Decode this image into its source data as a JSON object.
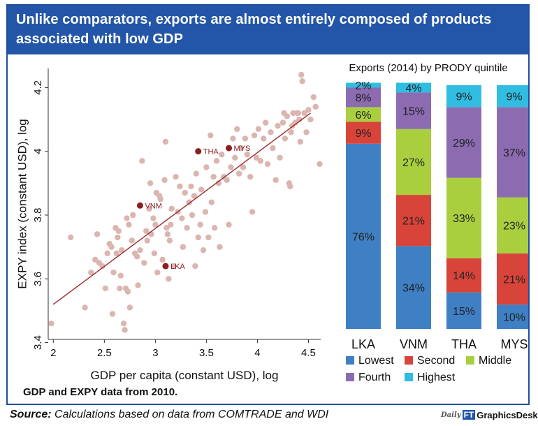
{
  "title": "Unlike comparators, exports are almost entirely composed of products associated with low GDP",
  "note": "GDP and EXPY data from 2010.",
  "source": {
    "label": "Source:",
    "text": "Calculations based on data from COMTRADE and WDI"
  },
  "logo": {
    "daily": "Daily",
    "ft": "FT",
    "text": "GraphicsDesk"
  },
  "colors": {
    "header_bg": "#2356a8",
    "scatter_point": "#dbb5b0",
    "highlight_point": "#8b1e1e",
    "fit_line": "#9b2a2a",
    "lowest": "#3f7fc4",
    "second": "#d9443a",
    "middle": "#a9cf3f",
    "fourth": "#8c6bb1",
    "highest": "#30bde2"
  },
  "chart_data": [
    {
      "type": "scatter",
      "xlabel": "GDP per capita (constant USD), log",
      "ylabel": "EXPY index (constant USD), log",
      "xlim": [
        1.95,
        4.62
      ],
      "ylim": [
        3.41,
        4.26
      ],
      "xticks": [
        "2",
        "2.5",
        "3",
        "3.5",
        "4",
        "4.5"
      ],
      "yticks": [
        "3.4",
        "3.6",
        "3.8",
        "4",
        "4.2"
      ],
      "fit_line": [
        [
          2.0,
          3.52
        ],
        [
          4.52,
          4.12
        ]
      ],
      "highlighted": [
        {
          "label": "LKA",
          "x": 3.1,
          "y": 3.64
        },
        {
          "label": "VNM",
          "x": 2.85,
          "y": 3.83
        },
        {
          "label": "THA",
          "x": 3.42,
          "y": 4.0
        },
        {
          "label": "MYS",
          "x": 3.72,
          "y": 4.01
        }
      ],
      "points": [
        [
          1.98,
          3.46
        ],
        [
          2.17,
          3.73
        ],
        [
          2.31,
          3.51
        ],
        [
          2.37,
          3.62
        ],
        [
          2.41,
          3.66
        ],
        [
          2.43,
          3.74
        ],
        [
          2.45,
          3.65
        ],
        [
          2.48,
          3.64
        ],
        [
          2.51,
          3.57
        ],
        [
          2.53,
          3.68
        ],
        [
          2.55,
          3.71
        ],
        [
          2.57,
          3.7
        ],
        [
          2.58,
          3.49
        ],
        [
          2.59,
          3.62
        ],
        [
          2.61,
          3.76
        ],
        [
          2.62,
          3.68
        ],
        [
          2.63,
          3.73
        ],
        [
          2.64,
          3.75
        ],
        [
          2.65,
          3.57
        ],
        [
          2.66,
          3.61
        ],
        [
          2.67,
          3.69
        ],
        [
          2.69,
          3.46
        ],
        [
          2.7,
          3.44
        ],
        [
          2.71,
          3.57
        ],
        [
          2.72,
          3.79
        ],
        [
          2.73,
          3.56
        ],
        [
          2.74,
          3.77
        ],
        [
          2.75,
          3.51
        ],
        [
          2.77,
          3.72
        ],
        [
          2.78,
          3.8
        ],
        [
          2.8,
          3.68
        ],
        [
          2.82,
          3.67
        ],
        [
          2.83,
          3.58
        ],
        [
          2.85,
          3.69
        ],
        [
          2.87,
          3.97
        ],
        [
          2.89,
          3.65
        ],
        [
          2.91,
          3.75
        ],
        [
          2.92,
          3.72
        ],
        [
          2.94,
          3.82
        ],
        [
          2.95,
          3.9
        ],
        [
          2.96,
          3.74
        ],
        [
          2.98,
          3.79
        ],
        [
          2.99,
          3.68
        ],
        [
          3.0,
          3.77
        ],
        [
          3.01,
          3.87
        ],
        [
          3.02,
          3.62
        ],
        [
          3.04,
          3.86
        ],
        [
          3.05,
          3.85
        ],
        [
          3.07,
          3.66
        ],
        [
          3.09,
          3.91
        ],
        [
          3.1,
          4.03
        ],
        [
          3.11,
          3.76
        ],
        [
          3.12,
          3.74
        ],
        [
          3.13,
          3.6
        ],
        [
          3.14,
          3.72
        ],
        [
          3.15,
          3.77
        ],
        [
          3.16,
          3.82
        ],
        [
          3.18,
          3.64
        ],
        [
          3.2,
          3.92
        ],
        [
          3.22,
          3.81
        ],
        [
          3.24,
          3.89
        ],
        [
          3.26,
          3.79
        ],
        [
          3.27,
          3.7
        ],
        [
          3.29,
          3.87
        ],
        [
          3.31,
          3.76
        ],
        [
          3.33,
          3.84
        ],
        [
          3.35,
          3.89
        ],
        [
          3.36,
          3.8
        ],
        [
          3.38,
          3.86
        ],
        [
          3.39,
          3.64
        ],
        [
          3.4,
          3.93
        ],
        [
          3.42,
          3.73
        ],
        [
          3.44,
          3.77
        ],
        [
          3.45,
          3.88
        ],
        [
          3.47,
          3.69
        ],
        [
          3.49,
          3.81
        ],
        [
          3.5,
          3.95
        ],
        [
          3.52,
          3.73
        ],
        [
          3.54,
          4.05
        ],
        [
          3.55,
          3.84
        ],
        [
          3.57,
          3.92
        ],
        [
          3.58,
          3.76
        ],
        [
          3.6,
          3.97
        ],
        [
          3.62,
          3.9
        ],
        [
          3.63,
          3.7
        ],
        [
          3.65,
          3.99
        ],
        [
          3.67,
          3.92
        ],
        [
          3.7,
          3.91
        ],
        [
          3.72,
          3.77
        ],
        [
          3.74,
          3.95
        ],
        [
          3.76,
          4.04
        ],
        [
          3.78,
          3.98
        ],
        [
          3.8,
          4.07
        ],
        [
          3.82,
          3.93
        ],
        [
          3.84,
          4.01
        ],
        [
          3.86,
          3.95
        ],
        [
          3.88,
          4.04
        ],
        [
          3.9,
          3.99
        ],
        [
          3.93,
          3.92
        ],
        [
          3.95,
          3.81
        ],
        [
          3.97,
          4.05
        ],
        [
          3.99,
          3.98
        ],
        [
          4.01,
          4.07
        ],
        [
          4.03,
          3.97
        ],
        [
          4.06,
          4.04
        ],
        [
          4.08,
          4.09
        ],
        [
          4.1,
          3.96
        ],
        [
          4.13,
          4.06
        ],
        [
          4.15,
          4.01
        ],
        [
          4.18,
          3.91
        ],
        [
          4.2,
          4.08
        ],
        [
          4.22,
          3.98
        ],
        [
          4.25,
          4.09
        ],
        [
          4.27,
          4.04
        ],
        [
          4.29,
          4.11
        ],
        [
          4.31,
          3.9
        ],
        [
          4.33,
          4.06
        ],
        [
          4.35,
          4.12
        ],
        [
          4.37,
          4.09
        ],
        [
          4.39,
          4.12
        ],
        [
          4.41,
          4.1
        ],
        [
          4.42,
          4.03
        ],
        [
          4.44,
          4.22
        ],
        [
          4.46,
          4.12
        ],
        [
          4.48,
          4.06
        ],
        [
          4.5,
          4.13
        ],
        [
          4.52,
          4.1
        ],
        [
          4.55,
          4.17
        ],
        [
          4.57,
          4.14
        ],
        [
          4.61,
          3.96
        ],
        [
          4.43,
          4.24
        ],
        [
          4.32,
          3.89
        ],
        [
          4.26,
          4.12
        ],
        [
          4.4,
          4.12
        ],
        [
          4.34,
          4.08
        ]
      ]
    },
    {
      "type": "bar",
      "stacked": true,
      "title": "Exports (2014) by PRODY quintile",
      "categories": [
        "LKA",
        "VNM",
        "THA",
        "MYS"
      ],
      "ylim": [
        0,
        100
      ],
      "series": [
        {
          "name": "Lowest",
          "values": [
            76,
            34,
            15,
            10
          ],
          "labels": [
            "76%",
            "34%",
            "15%",
            "10%"
          ]
        },
        {
          "name": "Second",
          "values": [
            9,
            21,
            14,
            21
          ],
          "labels": [
            "9%",
            "21%",
            "14%",
            "21%"
          ]
        },
        {
          "name": "Middle",
          "values": [
            6,
            27,
            33,
            23
          ],
          "labels": [
            "6%",
            "27%",
            "33%",
            "23%"
          ]
        },
        {
          "name": "Fourth",
          "values": [
            8,
            15,
            29,
            37
          ],
          "labels": [
            "8%",
            "15%",
            "29%",
            "37%"
          ]
        },
        {
          "name": "Highest",
          "values": [
            2,
            4,
            9,
            9
          ],
          "labels": [
            "2%",
            "4%",
            "9%",
            "9%"
          ]
        }
      ]
    }
  ]
}
